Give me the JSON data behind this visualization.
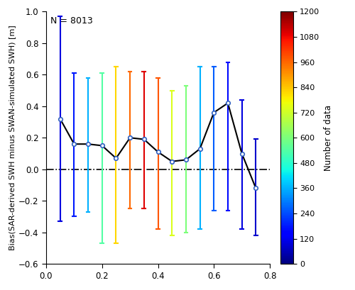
{
  "title_note": "N = 8013",
  "x_values": [
    0.05,
    0.1,
    0.15,
    0.2,
    0.25,
    0.3,
    0.35,
    0.4,
    0.45,
    0.5,
    0.55,
    0.6,
    0.65,
    0.7,
    0.75
  ],
  "y_means": [
    0.32,
    0.16,
    0.16,
    0.15,
    0.07,
    0.2,
    0.19,
    0.11,
    0.05,
    0.06,
    0.13,
    0.36,
    0.42,
    0.1,
    -0.12
  ],
  "y_upper": [
    0.97,
    0.61,
    0.58,
    0.61,
    0.65,
    0.62,
    0.62,
    0.58,
    0.5,
    0.53,
    0.65,
    0.65,
    0.68,
    0.44,
    0.19
  ],
  "y_lower": [
    -0.33,
    -0.3,
    -0.27,
    -0.47,
    -0.47,
    -0.25,
    -0.25,
    -0.38,
    -0.42,
    -0.4,
    -0.38,
    -0.26,
    -0.26,
    -0.38,
    -0.42
  ],
  "n_counts": [
    100,
    180,
    360,
    540,
    820,
    960,
    1100,
    980,
    740,
    600,
    360,
    260,
    160,
    100,
    80
  ],
  "cmap": "jet",
  "cmap_vmin": 0,
  "cmap_vmax": 1200,
  "cbar_ticks": [
    0,
    120,
    240,
    360,
    480,
    600,
    720,
    840,
    960,
    1080,
    1200
  ],
  "cbar_label": "Number of data",
  "xlabel": "",
  "ylabel": "Bias(SAR-derived SWH minus SWAN-simulated SWH) [m]",
  "ylim": [
    -0.6,
    1.0
  ],
  "xlim": [
    0.0,
    0.8
  ],
  "yticks": [
    -0.6,
    -0.4,
    -0.2,
    0.0,
    0.2,
    0.4,
    0.6,
    0.8,
    1.0
  ],
  "xticks": [
    0.0,
    0.2,
    0.4,
    0.6,
    0.8
  ]
}
